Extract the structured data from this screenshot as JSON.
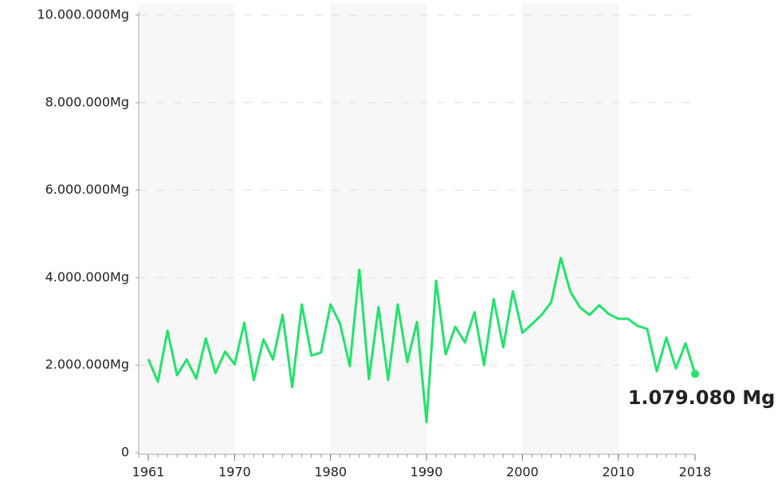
{
  "chart_data": {
    "type": "line",
    "x": [
      1961,
      1962,
      1963,
      1964,
      1965,
      1966,
      1967,
      1968,
      1969,
      1970,
      1971,
      1972,
      1973,
      1974,
      1975,
      1976,
      1977,
      1978,
      1979,
      1980,
      1981,
      1982,
      1983,
      1984,
      1985,
      1986,
      1987,
      1988,
      1989,
      1990,
      1991,
      1992,
      1993,
      1994,
      1995,
      1996,
      1997,
      1998,
      1999,
      2000,
      2001,
      2002,
      2003,
      2004,
      2005,
      2006,
      2007,
      2008,
      2009,
      2010,
      2011,
      2012,
      2013,
      2014,
      2015,
      2016,
      2017,
      2018
    ],
    "series": [
      {
        "color": "#22e36b",
        "values": [
          2140000,
          1620000,
          2790000,
          1770000,
          2130000,
          1690000,
          2610000,
          1820000,
          2310000,
          2020000,
          2970000,
          1660000,
          2590000,
          2130000,
          3150000,
          1500000,
          3390000,
          2220000,
          2290000,
          3390000,
          2940000,
          1980000,
          4180000,
          1680000,
          3330000,
          1660000,
          3390000,
          2070000,
          2990000,
          700000,
          3930000,
          2250000,
          2880000,
          2520000,
          3210000,
          2000000,
          3510000,
          2410000,
          3690000,
          2740000,
          2940000,
          3150000,
          3440000,
          4450000,
          3680000,
          3320000,
          3150000,
          3370000,
          3170000,
          3060000,
          3060000,
          2900000,
          2830000,
          1860000,
          2630000,
          1930000,
          2500000,
          1800000
        ]
      }
    ],
    "annotation": "1.079.080 Mg",
    "xlim": [
      1960,
      2018
    ],
    "xticks": [
      1961,
      1970,
      1980,
      1990,
      2000,
      2010,
      2018
    ],
    "ylim": [
      0,
      10000000
    ],
    "yticks": [
      0,
      {
        "value": 2000000,
        "label": "2.000.000Mg"
      },
      {
        "value": 4000000,
        "label": "4.000.000Mg"
      },
      {
        "value": 6000000,
        "label": "6.000.000Mg"
      },
      {
        "value": 8000000,
        "label": "8.000.000Mg"
      },
      {
        "value": 10000000,
        "label": "10.000.000Mg"
      }
    ],
    "grid": true
  }
}
